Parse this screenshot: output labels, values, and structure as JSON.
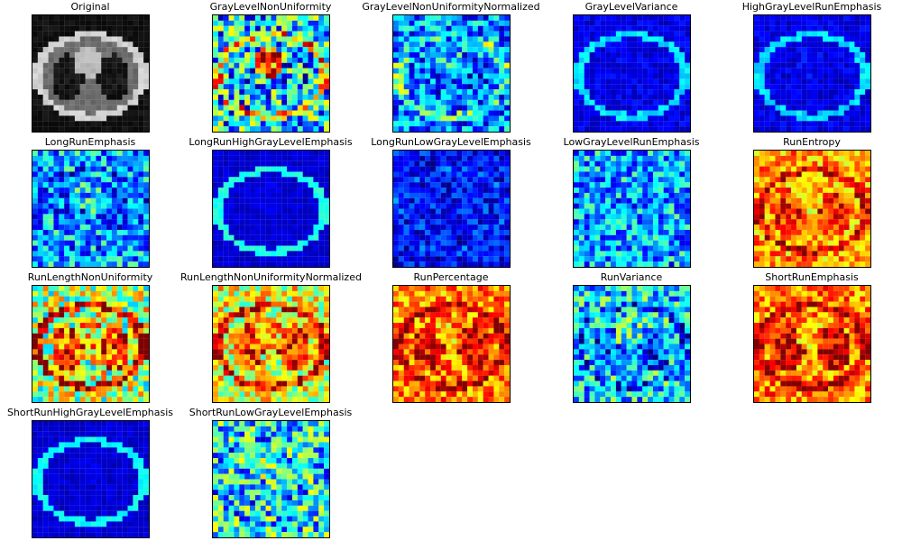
{
  "figure": {
    "panels": [
      {
        "title": "Original",
        "colormap": "gray",
        "level": 0.35,
        "ring": 0.85,
        "heart": 0.75,
        "lungs": 0.05,
        "noise": 0.05
      },
      {
        "title": "GrayLevelNonUniformity",
        "colormap": "jet",
        "level": 0.35,
        "ring": 0.65,
        "heart": 0.82,
        "lungs": 0.3,
        "noise": 0.3
      },
      {
        "title": "GrayLevelNonUniformityNormalized",
        "colormap": "jet",
        "level": 0.25,
        "ring": 0.45,
        "heart": 0.35,
        "lungs": 0.22,
        "noise": 0.2
      },
      {
        "title": "GrayLevelVariance",
        "colormap": "jet",
        "level": 0.1,
        "ring": 0.35,
        "heart": 0.1,
        "lungs": 0.1,
        "noise": 0.05
      },
      {
        "title": "HighGrayLevelRunEmphasis",
        "colormap": "jet",
        "level": 0.1,
        "ring": 0.35,
        "heart": 0.12,
        "lungs": 0.1,
        "noise": 0.05
      },
      {
        "title": "LongRunEmphasis",
        "colormap": "jet",
        "level": 0.3,
        "ring": 0.2,
        "heart": 0.35,
        "lungs": 0.22,
        "noise": 0.2
      },
      {
        "title": "LongRunHighGrayLevelEmphasis",
        "colormap": "jet",
        "level": 0.08,
        "ring": 0.4,
        "heart": 0.1,
        "lungs": 0.08,
        "noise": 0.03
      },
      {
        "title": "LongRunLowGrayLevelEmphasis",
        "colormap": "jet",
        "level": 0.12,
        "ring": 0.18,
        "heart": 0.12,
        "lungs": 0.14,
        "noise": 0.12
      },
      {
        "title": "LowGrayLevelRunEmphasis",
        "colormap": "jet",
        "level": 0.3,
        "ring": 0.28,
        "heart": 0.28,
        "lungs": 0.3,
        "noise": 0.2
      },
      {
        "title": "RunEntropy",
        "colormap": "jet",
        "level": 0.72,
        "ring": 0.92,
        "heart": 0.68,
        "lungs": 0.85,
        "noise": 0.15
      },
      {
        "title": "RunLengthNonUniformity",
        "colormap": "jet",
        "level": 0.55,
        "ring": 0.95,
        "heart": 0.65,
        "lungs": 0.85,
        "noise": 0.25
      },
      {
        "title": "RunLengthNonUniformityNormalized",
        "colormap": "jet",
        "level": 0.6,
        "ring": 0.92,
        "heart": 0.7,
        "lungs": 0.84,
        "noise": 0.2
      },
      {
        "title": "RunPercentage",
        "colormap": "jet",
        "level": 0.75,
        "ring": 0.95,
        "heart": 0.72,
        "lungs": 0.9,
        "noise": 0.15
      },
      {
        "title": "RunVariance",
        "colormap": "jet",
        "level": 0.35,
        "ring": 0.2,
        "heart": 0.38,
        "lungs": 0.2,
        "noise": 0.22
      },
      {
        "title": "ShortRunEmphasis",
        "colormap": "jet",
        "level": 0.75,
        "ring": 0.95,
        "heart": 0.72,
        "lungs": 0.9,
        "noise": 0.15
      },
      {
        "title": "ShortRunHighGrayLevelEmphasis",
        "colormap": "jet",
        "level": 0.08,
        "ring": 0.38,
        "heart": 0.1,
        "lungs": 0.08,
        "noise": 0.03
      },
      {
        "title": "ShortRunLowGrayLevelEmphasis",
        "colormap": "jet",
        "level": 0.38,
        "ring": 0.3,
        "heart": 0.45,
        "lungs": 0.32,
        "noise": 0.25
      }
    ]
  }
}
